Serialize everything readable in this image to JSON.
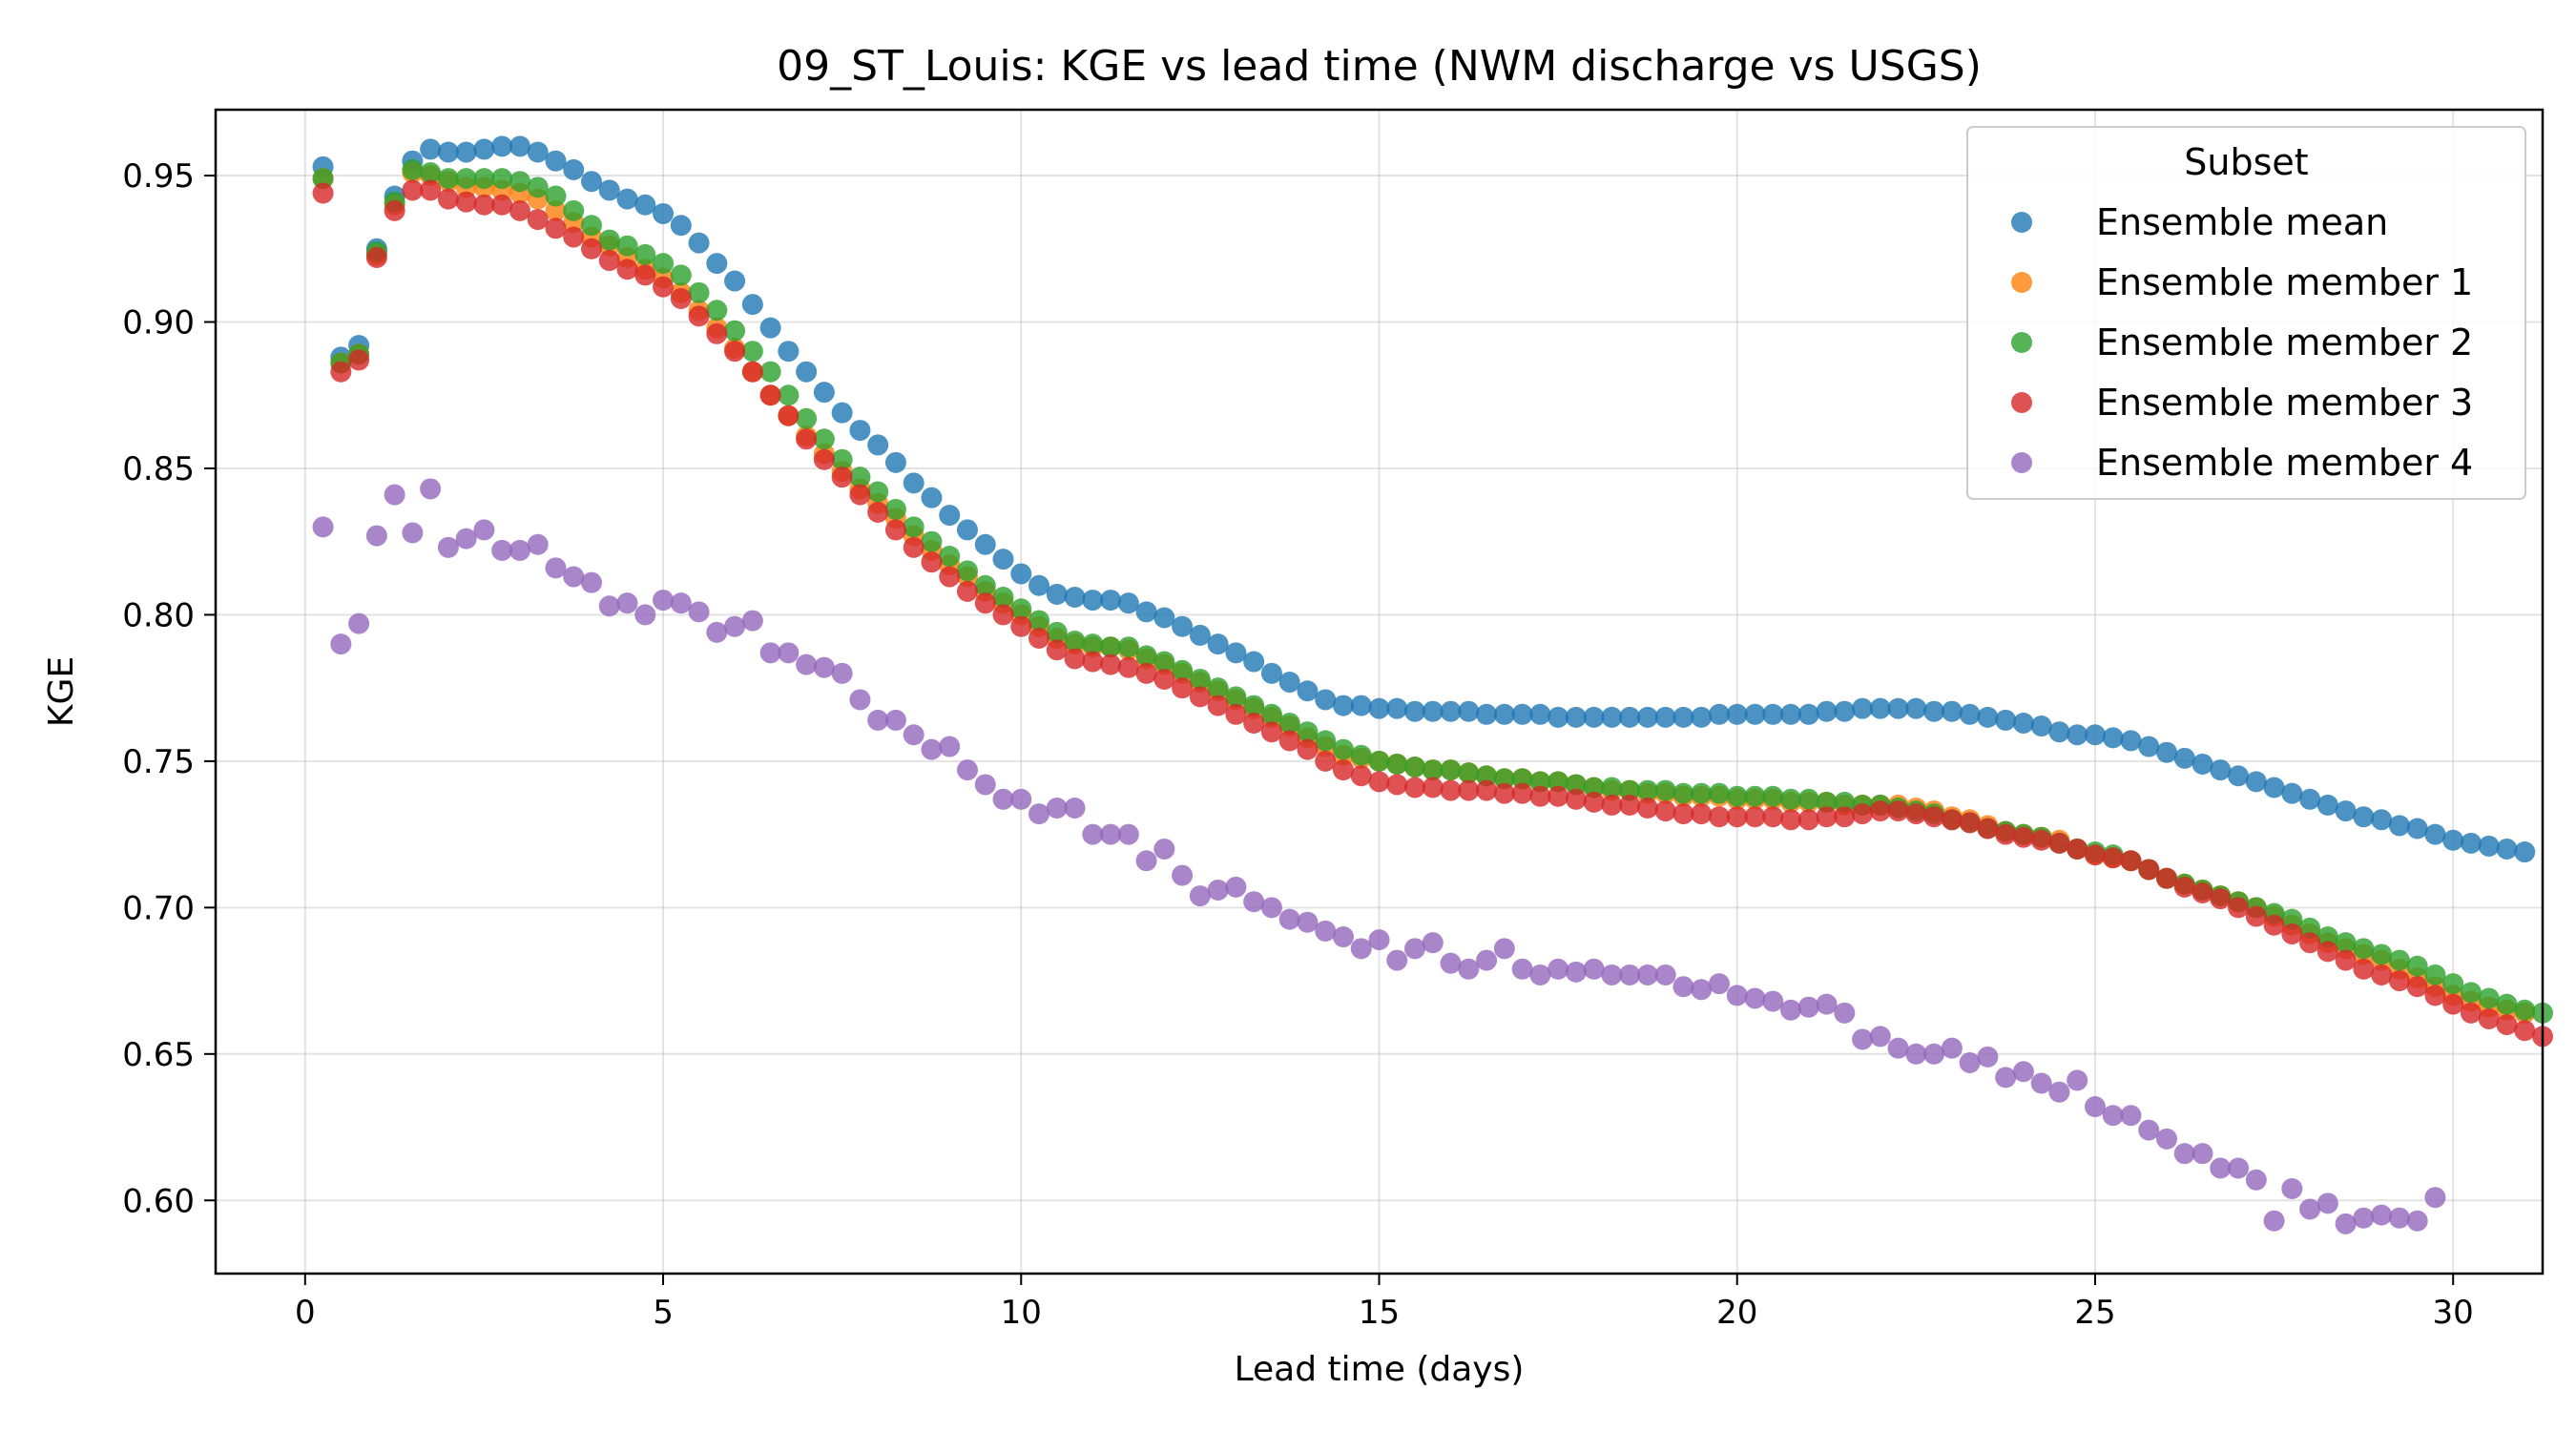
{
  "chart_data": {
    "type": "scatter",
    "title": "09_ST_Louis: KGE vs lead time (NWM discharge vs USGS)",
    "xlabel": "Lead time (days)",
    "ylabel": "KGE",
    "xlim": [
      -1.25,
      31.25
    ],
    "ylim": [
      0.575,
      0.9725
    ],
    "xticks": [
      0,
      5,
      10,
      15,
      20,
      25,
      30
    ],
    "xtick_labels": [
      "0",
      "5",
      "10",
      "15",
      "20",
      "25",
      "30"
    ],
    "yticks": [
      0.6,
      0.65,
      0.7,
      0.75,
      0.8,
      0.85,
      0.9,
      0.95
    ],
    "ytick_labels": [
      "0.60",
      "0.65",
      "0.70",
      "0.75",
      "0.80",
      "0.85",
      "0.90",
      "0.95"
    ],
    "grid": true,
    "legend": {
      "title": "Subset",
      "placement": "top-right"
    },
    "x_start": 0.25,
    "x_step": 0.25,
    "series": [
      {
        "name": "Ensemble mean",
        "color": "#1f77b4",
        "values": [
          0.953,
          0.888,
          0.892,
          0.925,
          0.943,
          0.955,
          0.959,
          0.958,
          0.958,
          0.959,
          0.96,
          0.96,
          0.958,
          0.955,
          0.952,
          0.948,
          0.945,
          0.942,
          0.94,
          0.937,
          0.933,
          0.927,
          0.92,
          0.914,
          0.906,
          0.898,
          0.89,
          0.883,
          0.876,
          0.869,
          0.863,
          0.858,
          0.852,
          0.845,
          0.84,
          0.834,
          0.829,
          0.824,
          0.819,
          0.814,
          0.81,
          0.807,
          0.806,
          0.805,
          0.805,
          0.804,
          0.801,
          0.799,
          0.796,
          0.793,
          0.79,
          0.787,
          0.784,
          0.78,
          0.777,
          0.774,
          0.771,
          0.769,
          0.769,
          0.768,
          0.768,
          0.767,
          0.767,
          0.767,
          0.767,
          0.766,
          0.766,
          0.766,
          0.766,
          0.765,
          0.765,
          0.765,
          0.765,
          0.765,
          0.765,
          0.765,
          0.765,
          0.765,
          0.766,
          0.766,
          0.766,
          0.766,
          0.766,
          0.766,
          0.767,
          0.767,
          0.768,
          0.768,
          0.768,
          0.768,
          0.767,
          0.767,
          0.766,
          0.765,
          0.764,
          0.763,
          0.762,
          0.76,
          0.759,
          0.759,
          0.758,
          0.757,
          0.755,
          0.753,
          0.751,
          0.749,
          0.747,
          0.745,
          0.743,
          0.741,
          0.739,
          0.737,
          0.735,
          0.733,
          0.731,
          0.73,
          0.728,
          0.727,
          0.725,
          0.723,
          0.722,
          0.721,
          0.72,
          0.719
        ]
      },
      {
        "name": "Ensemble member 1",
        "color": "#ff7f0e",
        "values": [
          0.949,
          0.886,
          0.889,
          0.923,
          0.94,
          0.951,
          0.95,
          0.948,
          0.946,
          0.946,
          0.945,
          0.944,
          0.942,
          0.938,
          0.934,
          0.929,
          0.926,
          0.922,
          0.918,
          0.915,
          0.91,
          0.904,
          0.898,
          0.891,
          0.883,
          0.875,
          0.868,
          0.861,
          0.855,
          0.849,
          0.843,
          0.838,
          0.833,
          0.827,
          0.822,
          0.817,
          0.813,
          0.808,
          0.804,
          0.8,
          0.796,
          0.792,
          0.79,
          0.789,
          0.789,
          0.788,
          0.785,
          0.783,
          0.78,
          0.777,
          0.774,
          0.771,
          0.768,
          0.765,
          0.762,
          0.758,
          0.755,
          0.752,
          0.751,
          0.75,
          0.749,
          0.748,
          0.747,
          0.747,
          0.746,
          0.745,
          0.744,
          0.744,
          0.743,
          0.743,
          0.742,
          0.741,
          0.74,
          0.74,
          0.739,
          0.739,
          0.738,
          0.738,
          0.738,
          0.737,
          0.737,
          0.737,
          0.736,
          0.736,
          0.736,
          0.735,
          0.735,
          0.735,
          0.735,
          0.734,
          0.733,
          0.731,
          0.73,
          0.728,
          0.726,
          0.725,
          0.724,
          0.723,
          0.72,
          0.718,
          0.717,
          0.716,
          0.713,
          0.71,
          0.708,
          0.706,
          0.704,
          0.702,
          0.7,
          0.697,
          0.694,
          0.691,
          0.688,
          0.686,
          0.684,
          0.682,
          0.679,
          0.676,
          0.673,
          0.67,
          0.668,
          0.666,
          0.665,
          0.664
        ]
      },
      {
        "name": "Ensemble member 2",
        "color": "#2ca02c",
        "values": [
          0.949,
          0.886,
          0.889,
          0.924,
          0.941,
          0.952,
          0.951,
          0.949,
          0.949,
          0.949,
          0.949,
          0.948,
          0.946,
          0.943,
          0.938,
          0.933,
          0.928,
          0.926,
          0.923,
          0.92,
          0.916,
          0.91,
          0.904,
          0.897,
          0.89,
          0.883,
          0.875,
          0.867,
          0.86,
          0.853,
          0.847,
          0.842,
          0.836,
          0.83,
          0.825,
          0.82,
          0.815,
          0.81,
          0.806,
          0.802,
          0.798,
          0.794,
          0.791,
          0.79,
          0.789,
          0.789,
          0.786,
          0.784,
          0.781,
          0.778,
          0.775,
          0.772,
          0.769,
          0.766,
          0.763,
          0.76,
          0.757,
          0.754,
          0.752,
          0.75,
          0.749,
          0.748,
          0.747,
          0.747,
          0.746,
          0.745,
          0.744,
          0.744,
          0.743,
          0.743,
          0.742,
          0.741,
          0.741,
          0.74,
          0.74,
          0.74,
          0.739,
          0.739,
          0.739,
          0.738,
          0.738,
          0.738,
          0.737,
          0.737,
          0.736,
          0.736,
          0.735,
          0.735,
          0.734,
          0.733,
          0.732,
          0.73,
          0.729,
          0.727,
          0.726,
          0.725,
          0.724,
          0.722,
          0.72,
          0.719,
          0.718,
          0.716,
          0.713,
          0.71,
          0.708,
          0.706,
          0.704,
          0.702,
          0.7,
          0.698,
          0.696,
          0.693,
          0.69,
          0.688,
          0.686,
          0.684,
          0.682,
          0.68,
          0.677,
          0.674,
          0.671,
          0.669,
          0.667,
          0.665,
          0.664
        ]
      },
      {
        "name": "Ensemble member 3",
        "color": "#d62728",
        "values": [
          0.944,
          0.883,
          0.887,
          0.922,
          0.938,
          0.945,
          0.945,
          0.942,
          0.941,
          0.94,
          0.94,
          0.938,
          0.935,
          0.932,
          0.929,
          0.925,
          0.921,
          0.918,
          0.916,
          0.912,
          0.908,
          0.902,
          0.896,
          0.89,
          0.883,
          0.875,
          0.868,
          0.86,
          0.853,
          0.847,
          0.841,
          0.835,
          0.829,
          0.823,
          0.818,
          0.813,
          0.808,
          0.804,
          0.8,
          0.796,
          0.792,
          0.788,
          0.785,
          0.784,
          0.783,
          0.782,
          0.78,
          0.778,
          0.775,
          0.772,
          0.769,
          0.766,
          0.763,
          0.76,
          0.757,
          0.754,
          0.75,
          0.747,
          0.745,
          0.743,
          0.742,
          0.741,
          0.741,
          0.74,
          0.74,
          0.74,
          0.739,
          0.739,
          0.738,
          0.738,
          0.737,
          0.736,
          0.735,
          0.735,
          0.734,
          0.733,
          0.732,
          0.732,
          0.731,
          0.731,
          0.731,
          0.731,
          0.73,
          0.73,
          0.731,
          0.731,
          0.732,
          0.733,
          0.733,
          0.732,
          0.731,
          0.73,
          0.729,
          0.727,
          0.725,
          0.724,
          0.723,
          0.722,
          0.72,
          0.718,
          0.717,
          0.716,
          0.713,
          0.71,
          0.707,
          0.705,
          0.703,
          0.7,
          0.697,
          0.694,
          0.691,
          0.688,
          0.685,
          0.682,
          0.679,
          0.677,
          0.675,
          0.673,
          0.67,
          0.667,
          0.664,
          0.662,
          0.66,
          0.658,
          0.656
        ]
      },
      {
        "name": "Ensemble member 4",
        "color": "#9467bd",
        "values": [
          0.83,
          0.79,
          0.797,
          0.827,
          0.841,
          0.828,
          0.843,
          0.823,
          0.826,
          0.829,
          0.822,
          0.822,
          0.824,
          0.816,
          0.813,
          0.811,
          0.803,
          0.804,
          0.8,
          0.805,
          0.804,
          0.801,
          0.794,
          0.796,
          0.798,
          0.787,
          0.787,
          0.783,
          0.782,
          0.78,
          0.771,
          0.764,
          0.764,
          0.759,
          0.754,
          0.755,
          0.747,
          0.742,
          0.737,
          0.737,
          0.732,
          0.734,
          0.734,
          0.725,
          0.725,
          0.725,
          0.716,
          0.72,
          0.711,
          0.704,
          0.706,
          0.707,
          0.702,
          0.7,
          0.696,
          0.695,
          0.692,
          0.69,
          0.686,
          0.689,
          0.682,
          0.686,
          0.688,
          0.681,
          0.679,
          0.682,
          0.686,
          0.679,
          0.677,
          0.679,
          0.678,
          0.679,
          0.677,
          0.677,
          0.677,
          0.677,
          0.673,
          0.672,
          0.674,
          0.67,
          0.669,
          0.668,
          0.665,
          0.666,
          0.667,
          0.664,
          0.655,
          0.656,
          0.652,
          0.65,
          0.65,
          0.652,
          0.647,
          0.649,
          0.642,
          0.644,
          0.64,
          0.637,
          0.641,
          0.632,
          0.629,
          0.629,
          0.624,
          0.621,
          0.616,
          0.616,
          0.611,
          0.611,
          0.607,
          0.593,
          0.604,
          0.597,
          0.599,
          0.592,
          0.594,
          0.595,
          0.594,
          0.593,
          0.601
        ]
      }
    ]
  }
}
